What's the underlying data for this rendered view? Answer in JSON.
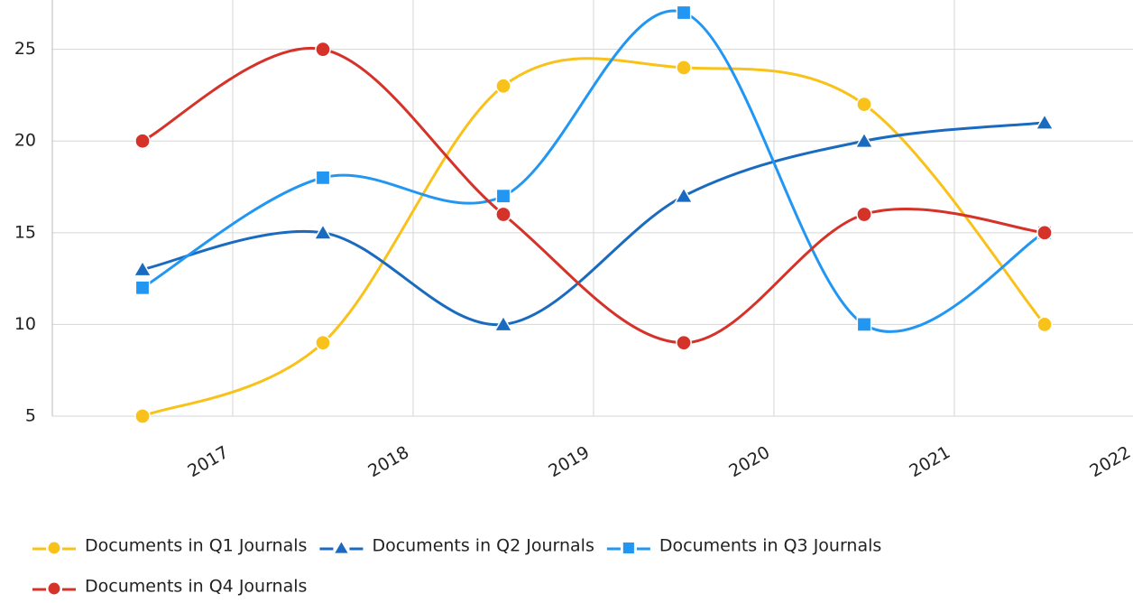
{
  "chart_data": {
    "type": "line",
    "categories": [
      "2017",
      "2018",
      "2019",
      "2020",
      "2021",
      "2022"
    ],
    "series": [
      {
        "name": "Documents in Q1 Journals",
        "color": "#f9c21a",
        "marker": "circle",
        "values": [
          5,
          9,
          23,
          24,
          22,
          10
        ]
      },
      {
        "name": "Documents in Q2 Journals",
        "color": "#1a6bc0",
        "marker": "triangle",
        "values": [
          13,
          15,
          10,
          17,
          20,
          21
        ]
      },
      {
        "name": "Documents in Q3 Journals",
        "color": "#2196f3",
        "marker": "square",
        "values": [
          12,
          18,
          17,
          27,
          10,
          15
        ]
      },
      {
        "name": "Documents in Q4 Journals",
        "color": "#d5322a",
        "marker": "circle",
        "values": [
          20,
          25,
          16,
          9,
          16,
          15
        ]
      }
    ],
    "ylim": [
      5,
      27
    ],
    "yticks": [
      5,
      10,
      15,
      20,
      25
    ],
    "grid": true,
    "smooth": true,
    "legend": "bottom"
  }
}
